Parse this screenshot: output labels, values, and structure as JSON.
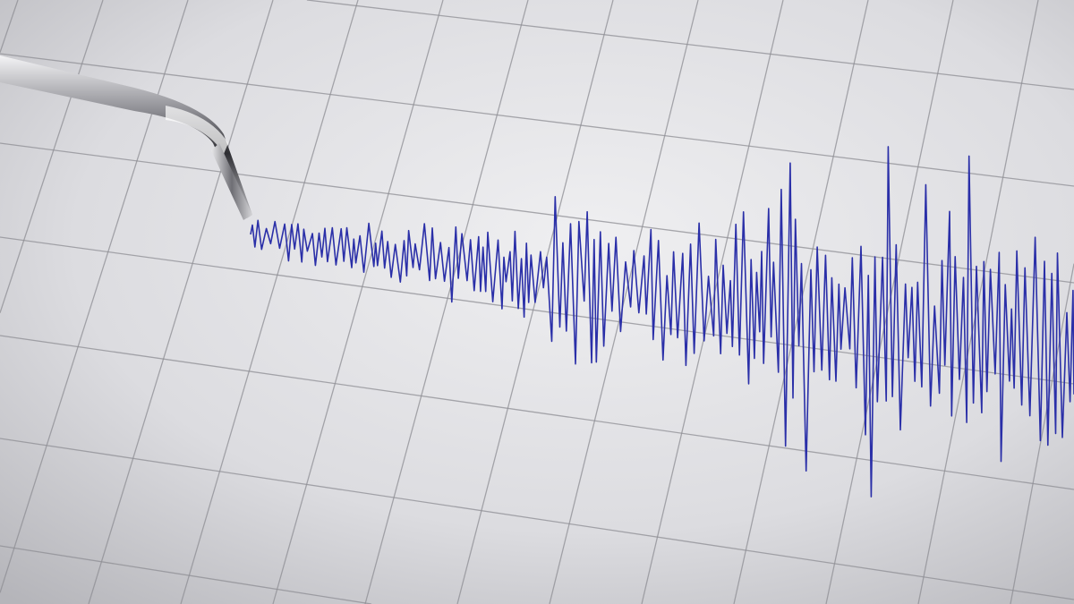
{
  "scene": {
    "subject": "seismograph-recording",
    "colors": {
      "paper_light": "#ececee",
      "paper_dark": "#b9b9be",
      "grid_line": "#8e8e94",
      "trace": "#2a2fa8",
      "stylus_metal": "#9a9aa0"
    },
    "icons": [
      "seismograph-stylus-icon"
    ]
  }
}
